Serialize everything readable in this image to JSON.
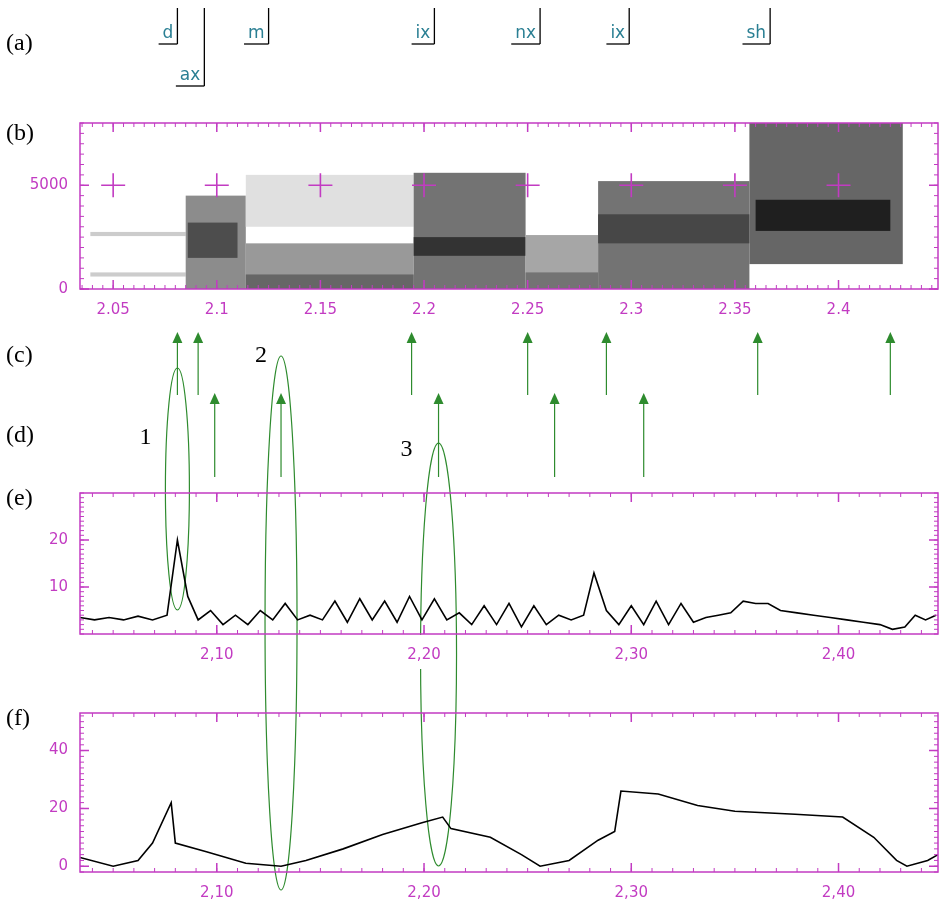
{
  "panel_labels": [
    "(a)",
    "(b)",
    "(c)",
    "(d)",
    "(e)",
    "(f)"
  ],
  "phonemes": [
    {
      "label": "d",
      "end": 2.081
    },
    {
      "label": "ax",
      "end": 2.094
    },
    {
      "label": "m",
      "end": 2.125
    },
    {
      "label": "ix",
      "end": 2.205
    },
    {
      "label": "nx",
      "end": 2.256
    },
    {
      "label": "ix",
      "end": 2.299
    },
    {
      "label": "sh",
      "end": 2.367
    }
  ],
  "c_arrows": [
    2.081,
    2.091,
    2.194,
    2.25,
    2.288,
    2.361,
    2.425
  ],
  "d_arrows": [
    2.099,
    2.131,
    2.207,
    2.263,
    2.306
  ],
  "events": [
    {
      "label": "1",
      "x": 2.081
    },
    {
      "label": "2",
      "x": 2.131
    },
    {
      "label": "3",
      "x": 2.207
    }
  ],
  "chart_data": [
    {
      "type": "heatmap",
      "xlim": [
        2.034,
        2.448
      ],
      "xticks": [
        2.05,
        2.1,
        2.15,
        2.2,
        2.25,
        2.3,
        2.35,
        2.4
      ],
      "ylim": [
        0,
        8000
      ],
      "yticks": [
        0,
        5000
      ],
      "grid": true,
      "regions": [
        {
          "x0": 2.039,
          "x1": 2.085,
          "y0": 2550,
          "y1": 2750,
          "intensity": 0.2
        },
        {
          "x0": 2.039,
          "x1": 2.085,
          "y0": 600,
          "y1": 800,
          "intensity": 0.2
        },
        {
          "x0": 2.085,
          "x1": 2.114,
          "y0": 0,
          "y1": 4500,
          "intensity": 0.45
        },
        {
          "x0": 2.086,
          "x1": 2.11,
          "y0": 1500,
          "y1": 3200,
          "intensity": 0.7
        },
        {
          "x0": 2.114,
          "x1": 2.195,
          "y0": 0,
          "y1": 2200,
          "intensity": 0.4
        },
        {
          "x0": 2.114,
          "x1": 2.195,
          "y0": 0,
          "y1": 700,
          "intensity": 0.6
        },
        {
          "x0": 2.114,
          "x1": 2.195,
          "y0": 3000,
          "y1": 5500,
          "intensity": 0.12
        },
        {
          "x0": 2.195,
          "x1": 2.249,
          "y0": 0,
          "y1": 5600,
          "intensity": 0.55
        },
        {
          "x0": 2.195,
          "x1": 2.249,
          "y0": 1600,
          "y1": 2500,
          "intensity": 0.8
        },
        {
          "x0": 2.249,
          "x1": 2.284,
          "y0": 0,
          "y1": 2600,
          "intensity": 0.35
        },
        {
          "x0": 2.249,
          "x1": 2.284,
          "y0": 0,
          "y1": 800,
          "intensity": 0.55
        },
        {
          "x0": 2.284,
          "x1": 2.357,
          "y0": 0,
          "y1": 5200,
          "intensity": 0.55
        },
        {
          "x0": 2.284,
          "x1": 2.357,
          "y0": 2200,
          "y1": 3600,
          "intensity": 0.72
        },
        {
          "x0": 2.357,
          "x1": 2.431,
          "y0": 1200,
          "y1": 8000,
          "intensity": 0.6
        },
        {
          "x0": 2.36,
          "x1": 2.425,
          "y0": 2800,
          "y1": 4300,
          "intensity": 0.88
        }
      ]
    },
    {
      "type": "line",
      "color": "#000000",
      "xlim": [
        2.034,
        2.448
      ],
      "xticks": [
        {
          "value": 2.1,
          "label": "2,10"
        },
        {
          "value": 2.2,
          "label": "2,20"
        },
        {
          "value": 2.3,
          "label": "2,30"
        },
        {
          "value": 2.4,
          "label": "2,40"
        }
      ],
      "ylim": [
        0,
        30
      ],
      "yticks": [
        10,
        20
      ],
      "x": [
        2.034,
        2.041,
        2.048,
        2.055,
        2.062,
        2.069,
        2.076,
        2.081,
        2.086,
        2.091,
        2.097,
        2.103,
        2.109,
        2.115,
        2.121,
        2.127,
        2.133,
        2.139,
        2.145,
        2.151,
        2.157,
        2.163,
        2.169,
        2.175,
        2.181,
        2.187,
        2.193,
        2.199,
        2.205,
        2.211,
        2.217,
        2.223,
        2.229,
        2.235,
        2.241,
        2.247,
        2.253,
        2.259,
        2.265,
        2.271,
        2.277,
        2.282,
        2.288,
        2.294,
        2.3,
        2.306,
        2.312,
        2.318,
        2.324,
        2.33,
        2.336,
        2.342,
        2.348,
        2.354,
        2.36,
        2.366,
        2.372,
        2.38,
        2.388,
        2.396,
        2.404,
        2.412,
        2.42,
        2.426,
        2.432,
        2.437,
        2.442,
        2.447
      ],
      "values": [
        3.5,
        3,
        3.5,
        3,
        3.8,
        3,
        4,
        20,
        8,
        3,
        5,
        2,
        4,
        2,
        5,
        3,
        6.5,
        3,
        4,
        3,
        7,
        2.5,
        7.5,
        3,
        7,
        2.5,
        8,
        3,
        7.5,
        3,
        4.5,
        2,
        6,
        2,
        6.5,
        1.5,
        6,
        2,
        4,
        3,
        4,
        13,
        5,
        2,
        6,
        2,
        7,
        2,
        6.5,
        2.5,
        3.5,
        4,
        4.5,
        7,
        6.5,
        6.5,
        5,
        4.5,
        4,
        3.5,
        3,
        2.5,
        2,
        1,
        1.5,
        4,
        3,
        4
      ]
    },
    {
      "type": "line",
      "color": "#000000",
      "xlim": [
        2.034,
        2.448
      ],
      "xticks": [
        {
          "value": 2.1,
          "label": "2,10"
        },
        {
          "value": 2.2,
          "label": "2,20"
        },
        {
          "value": 2.3,
          "label": "2,30"
        },
        {
          "value": 2.4,
          "label": "2,40"
        }
      ],
      "ylim": [
        -2,
        53
      ],
      "yticks": [
        0,
        20,
        40
      ],
      "x": [
        2.034,
        2.05,
        2.062,
        2.069,
        2.078,
        2.08,
        2.095,
        2.114,
        2.131,
        2.143,
        2.161,
        2.18,
        2.199,
        2.209,
        2.213,
        2.232,
        2.247,
        2.256,
        2.27,
        2.284,
        2.292,
        2.295,
        2.313,
        2.332,
        2.35,
        2.379,
        2.402,
        2.417,
        2.428,
        2.433,
        2.443,
        2.448
      ],
      "values": [
        3,
        0,
        2,
        8,
        22,
        8,
        5,
        1,
        0,
        2,
        6,
        11,
        15,
        17,
        13,
        10,
        4,
        0,
        2,
        9,
        12,
        26,
        25,
        21,
        19,
        18,
        17,
        10,
        2,
        0,
        2,
        4
      ]
    }
  ]
}
